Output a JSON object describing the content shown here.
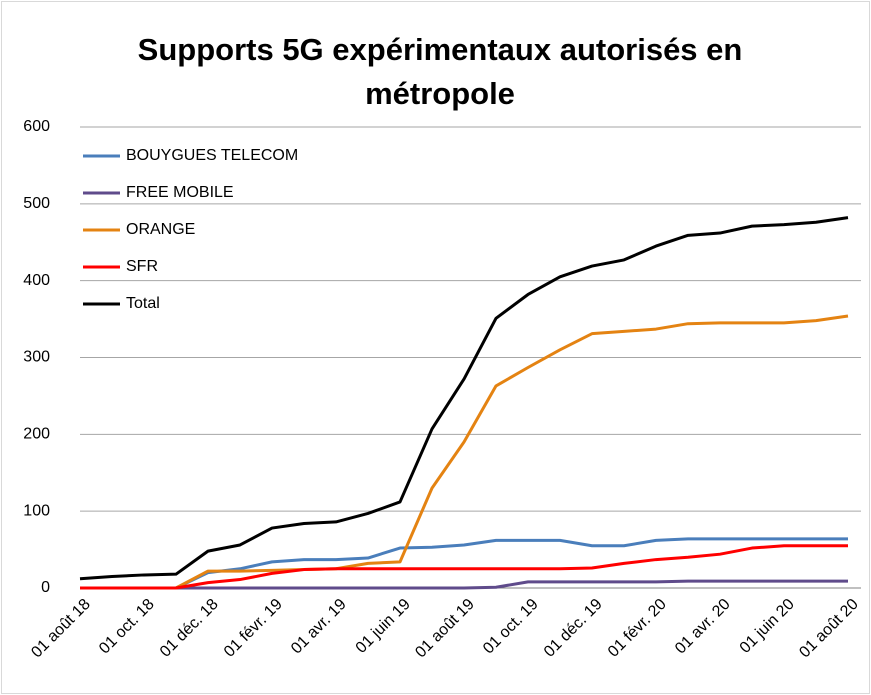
{
  "chart_data": {
    "type": "line",
    "title": "Supports 5G expérimentaux autorisés en métropole",
    "categories": [
      "01 août 18",
      null,
      "01 oct. 18",
      null,
      "01 déc. 18",
      null,
      "01 févr. 19",
      null,
      "01 avr. 19",
      null,
      "01 juin 19",
      null,
      "01 août 19",
      null,
      "01 oct. 19",
      null,
      "01 déc. 19",
      null,
      "01 févr. 20",
      null,
      "01 avr. 20",
      null,
      "01 juin 20",
      null,
      "01 août 20"
    ],
    "series": [
      {
        "name": "BOUYGUES TELECOM",
        "color": "#4a7ebb",
        "values": [
          0,
          0,
          0,
          0,
          20,
          25,
          34,
          37,
          37,
          39,
          52,
          53,
          56,
          62,
          62,
          62,
          55,
          55,
          62,
          64,
          64,
          64,
          64,
          64,
          64
        ]
      },
      {
        "name": "FREE MOBILE",
        "color": "#5f4b8b",
        "values": [
          0,
          0,
          0,
          0,
          0,
          0,
          0,
          0,
          0,
          0,
          0,
          0,
          0,
          1,
          8,
          8,
          8,
          8,
          8,
          9,
          9,
          9,
          9,
          9,
          9
        ]
      },
      {
        "name": "ORANGE",
        "color": "#e48312",
        "values": [
          0,
          0,
          0,
          0,
          22,
          22,
          23,
          24,
          25,
          32,
          34,
          130,
          190,
          263,
          287,
          310,
          331,
          334,
          337,
          344,
          345,
          345,
          345,
          348,
          354
        ]
      },
      {
        "name": "SFR",
        "color": "#ff0000",
        "values": [
          0,
          0,
          0,
          0,
          7,
          11,
          19,
          24,
          25,
          25,
          25,
          25,
          25,
          25,
          25,
          25,
          26,
          32,
          37,
          40,
          44,
          52,
          55,
          55,
          55
        ]
      },
      {
        "name": "Total",
        "color": "#000000",
        "values": [
          12,
          15,
          17,
          18,
          48,
          56,
          78,
          84,
          86,
          97,
          112,
          207,
          272,
          351,
          382,
          405,
          419,
          427,
          445,
          459,
          462,
          471,
          473,
          476,
          482
        ]
      }
    ],
    "ylim": [
      0,
      600
    ],
    "yticks": [
      0,
      100,
      200,
      300,
      400,
      500,
      600
    ],
    "grid": true,
    "legend": "top-left"
  }
}
